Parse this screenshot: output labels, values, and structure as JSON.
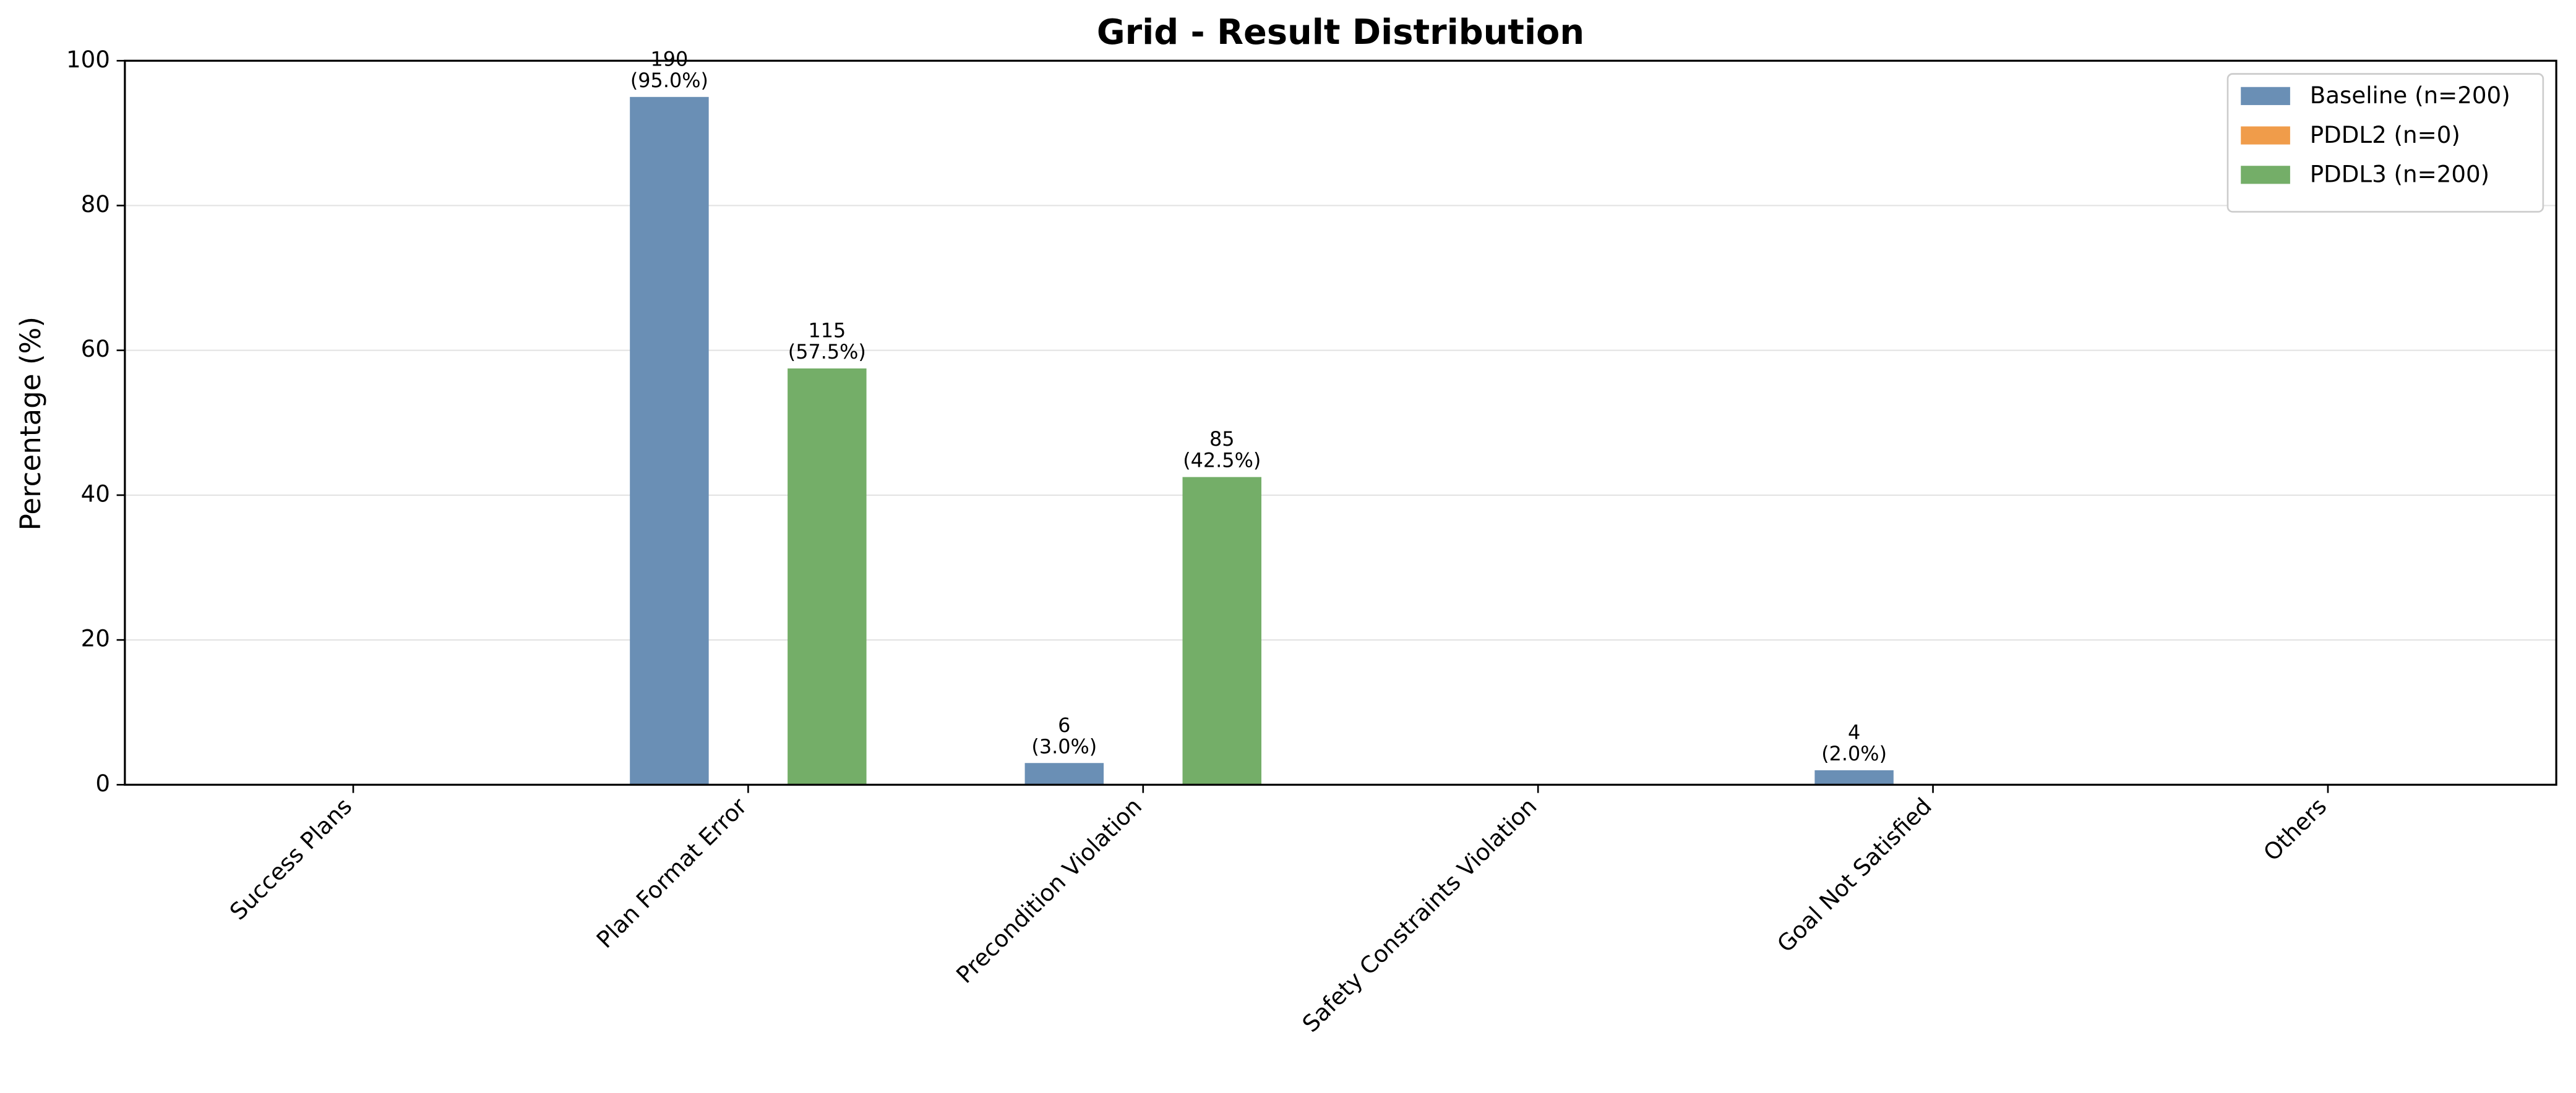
{
  "chart_data": {
    "type": "bar",
    "title": "Grid - Result Distribution",
    "y_label": "Percentage (%)",
    "categories": [
      "Success Plans",
      "Plan Format Error",
      "Precondition Violation",
      "Safety Constraints Violation",
      "Goal Not Satisfied",
      "Others"
    ],
    "series": [
      {
        "name": "Baseline (n=200)",
        "color": "#6a8fb5",
        "values": [
          0,
          95,
          3,
          0,
          2,
          0
        ],
        "value_labels": [
          null,
          [
            "190",
            "(95.0%)"
          ],
          [
            "6",
            "(3.0%)"
          ],
          null,
          [
            "4",
            "(2.0%)"
          ],
          null
        ]
      },
      {
        "name": "PDDL2 (n=0)",
        "color": "#f09c4a",
        "values": [
          0,
          0,
          0,
          0,
          0,
          0
        ],
        "value_labels": [
          null,
          null,
          null,
          null,
          null,
          null
        ]
      },
      {
        "name": "PDDL3 (n=200)",
        "color": "#74ae68",
        "values": [
          0,
          57.5,
          42.5,
          0,
          0,
          0
        ],
        "value_labels": [
          null,
          [
            "115",
            "(57.5%)"
          ],
          [
            "85",
            "(42.5%)"
          ],
          null,
          null,
          null
        ]
      }
    ],
    "ylim": [
      0,
      100
    ],
    "yticks": [
      0,
      20,
      40,
      60,
      80,
      100
    ],
    "grid": true,
    "legend": "upper right"
  }
}
